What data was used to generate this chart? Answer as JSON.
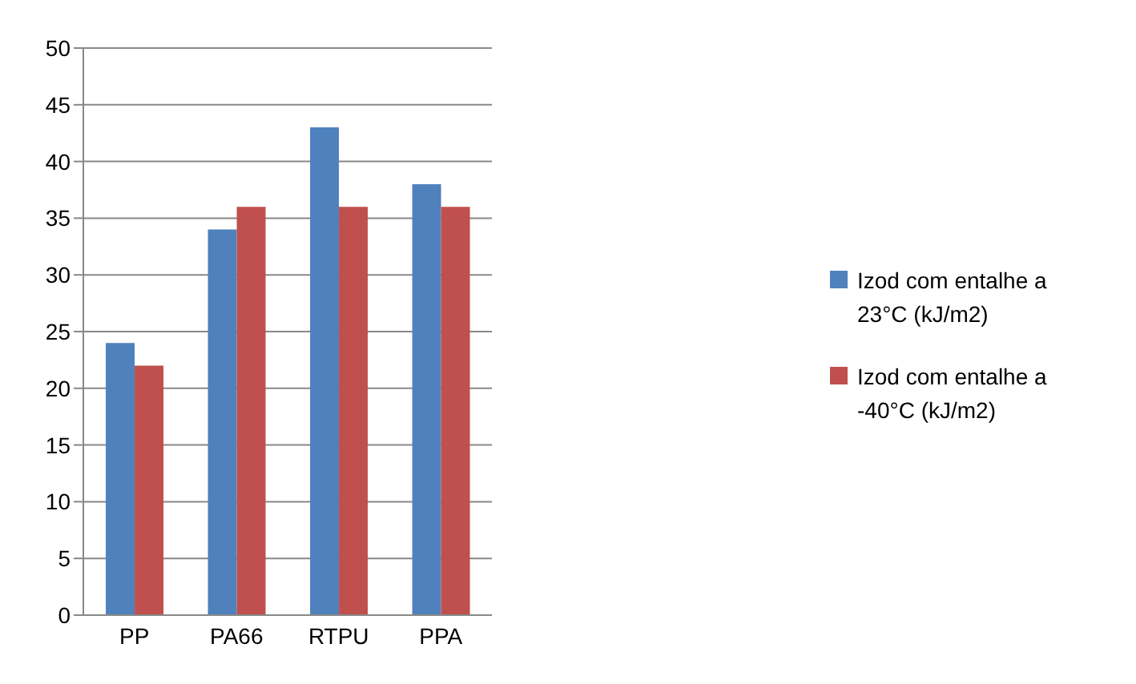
{
  "chart_data": {
    "type": "bar",
    "categories": [
      "PP",
      "PA66",
      "RTPU",
      "PPA"
    ],
    "series": [
      {
        "name": "Izod com entalhe a 23°C (kJ/m2)",
        "color": "#4f81bd",
        "values": [
          24,
          34,
          43,
          38
        ]
      },
      {
        "name": "Izod com entalhe a -40°C (kJ/m2)",
        "color": "#c0504d",
        "values": [
          22,
          36,
          36,
          36
        ]
      }
    ],
    "ylim": [
      0,
      50
    ],
    "yticks": [
      0,
      5,
      10,
      15,
      20,
      25,
      30,
      35,
      40,
      45,
      50
    ],
    "grid": "y",
    "legend": "right"
  }
}
